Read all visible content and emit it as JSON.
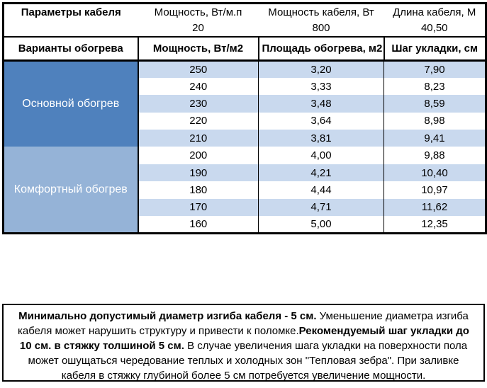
{
  "params": {
    "title": "Параметры кабеля",
    "cols": [
      {
        "label": "Мощность, Вт/м.п",
        "value": "20"
      },
      {
        "label": "Мощность кабеля, Вт",
        "value": "800"
      },
      {
        "label": "Длина кабеля, М",
        "value": "40,50"
      }
    ]
  },
  "table": {
    "headers": {
      "variants": "Варианты обогрева",
      "power": "Мощность, Вт/м2",
      "area": "Площадь обогрева, м2",
      "step": "Шаг укладки, см"
    },
    "sections": [
      {
        "label": "Основной обогрев",
        "rows": [
          {
            "power": "250",
            "area": "3,20",
            "step": "7,90"
          },
          {
            "power": "240",
            "area": "3,33",
            "step": "8,23"
          },
          {
            "power": "230",
            "area": "3,48",
            "step": "8,59"
          },
          {
            "power": "220",
            "area": "3,64",
            "step": "8,98"
          },
          {
            "power": "210",
            "area": "3,81",
            "step": "9,41"
          }
        ]
      },
      {
        "label": "Комфортный обогрев",
        "rows": [
          {
            "power": "200",
            "area": "4,00",
            "step": "9,88"
          },
          {
            "power": "190",
            "area": "4,21",
            "step": "10,40"
          },
          {
            "power": "180",
            "area": "4,44",
            "step": "10,97"
          },
          {
            "power": "170",
            "area": "4,71",
            "step": "11,62"
          },
          {
            "power": "160",
            "area": "5,00",
            "step": "12,35"
          }
        ]
      }
    ]
  },
  "note": {
    "segments": [
      {
        "bold": true,
        "text": "Минимально допустимый диаметр изгиба кабеля - 5 см."
      },
      {
        "bold": false,
        "text": "  Уменьшение диаметра изгиба кабеля может нарушить структуру и привести к поломке."
      },
      {
        "bold": true,
        "text": "Рекомендуемый шаг укладки до 10 см. в стяжку толшиной 5 см."
      },
      {
        "bold": false,
        "text": " В  случае увеличения шага укладки на поверхности пола может ошущаться чередование теплых и холодных зон \"Тепловая зебра\". При заливке кабеля в стяжку глубиной более 5 см потребуется увеличение мощности."
      }
    ]
  },
  "colors": {
    "primary_blue": "#4f81bd",
    "comfort_blue": "#95b3d7",
    "stripe_blue": "#c9d9ee",
    "border_black": "#000000"
  }
}
